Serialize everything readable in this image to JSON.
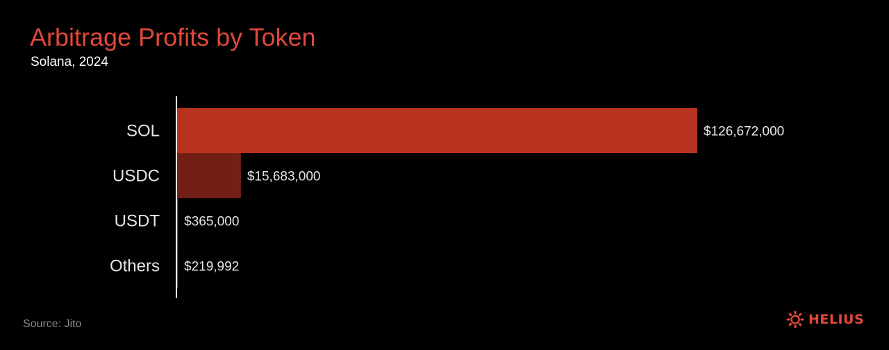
{
  "chart_data": {
    "type": "bar",
    "orientation": "horizontal",
    "title": "Arbitrage Profits by Token",
    "subtitle": "Solana, 2024",
    "categories": [
      "SOL",
      "USDC",
      "USDT",
      "Others"
    ],
    "values": [
      126672000,
      15683000,
      365000,
      219992
    ],
    "value_labels": [
      "$126,672,000",
      "$15,683,000",
      "$365,000",
      "$219,992"
    ],
    "bar_colors": [
      "#b83220",
      "#722016",
      "#b83220",
      "#b83220"
    ],
    "xlim": [
      0,
      126672000
    ],
    "grid": false,
    "legend": "none"
  },
  "footer": {
    "source": "Source: Jito",
    "brand": "HELIUS"
  },
  "colors": {
    "background": "#000000",
    "accent": "#e0483a",
    "axis": "#ffffff",
    "label": "#e6e6e6",
    "source": "#8a8a8a"
  }
}
